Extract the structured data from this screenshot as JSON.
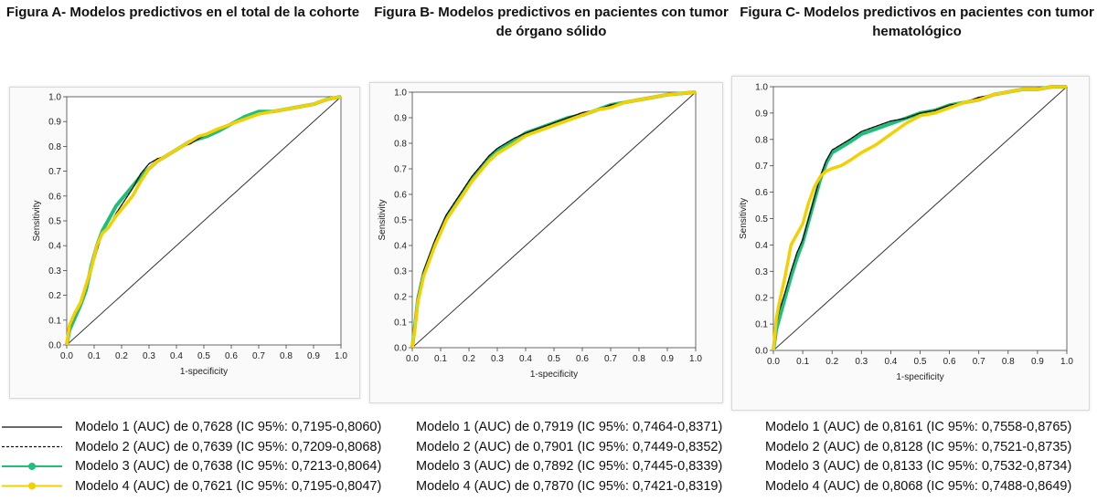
{
  "chart_data": [
    {
      "type": "line",
      "title": "Figura A- Modelos predictivos en el total de la cohorte",
      "xlabel": "1-specificity",
      "ylabel": "Sensitivity",
      "xlim": [
        0,
        1
      ],
      "ylim": [
        0,
        1
      ],
      "ticks": [
        "0.0",
        "0.1",
        "0.2",
        "0.3",
        "0.4",
        "0.5",
        "0.6",
        "0.7",
        "0.8",
        "0.9",
        "1.0"
      ],
      "reference_line": [
        [
          0,
          0
        ],
        [
          1,
          1
        ]
      ],
      "series": [
        {
          "name": "Modelo 1",
          "auc_label": "Modelo 1 (AUC) de 0,7628 (IC 95%: 0,7195-0,8060)",
          "color": "#111111",
          "dash": "solid",
          "x": [
            0,
            0.01,
            0.03,
            0.05,
            0.07,
            0.09,
            0.11,
            0.13,
            0.15,
            0.18,
            0.21,
            0.24,
            0.27,
            0.3,
            0.33,
            0.36,
            0.39,
            0.42,
            0.45,
            0.48,
            0.51,
            0.55,
            0.6,
            0.65,
            0.7,
            0.75,
            0.8,
            0.85,
            0.9,
            0.95,
            1.0
          ],
          "y": [
            0,
            0.07,
            0.12,
            0.17,
            0.23,
            0.3,
            0.38,
            0.45,
            0.47,
            0.53,
            0.58,
            0.63,
            0.69,
            0.73,
            0.75,
            0.76,
            0.78,
            0.8,
            0.81,
            0.83,
            0.85,
            0.87,
            0.89,
            0.91,
            0.93,
            0.94,
            0.95,
            0.96,
            0.97,
            0.99,
            1.0
          ]
        },
        {
          "name": "Modelo 2",
          "auc_label": "Modelo 2 (AUC) de 0,7639 (IC 95%: 0,7209-0,8068)",
          "color": "#111111",
          "dash": "dashed",
          "x": [
            0,
            0.01,
            0.03,
            0.05,
            0.07,
            0.09,
            0.11,
            0.13,
            0.15,
            0.18,
            0.21,
            0.24,
            0.27,
            0.3,
            0.33,
            0.36,
            0.39,
            0.42,
            0.45,
            0.48,
            0.51,
            0.55,
            0.6,
            0.65,
            0.7,
            0.75,
            0.8,
            0.85,
            0.9,
            0.95,
            1.0
          ],
          "y": [
            0,
            0.07,
            0.12,
            0.17,
            0.23,
            0.3,
            0.38,
            0.45,
            0.47,
            0.53,
            0.58,
            0.63,
            0.69,
            0.73,
            0.75,
            0.76,
            0.78,
            0.8,
            0.81,
            0.83,
            0.85,
            0.87,
            0.89,
            0.91,
            0.93,
            0.94,
            0.95,
            0.96,
            0.97,
            0.99,
            1.0
          ]
        },
        {
          "name": "Modelo 3",
          "auc_label": "Modelo 3 (AUC) de 0,7638 (IC 95%: 0,7213-0,8064)",
          "color": "#1fbf7a",
          "dash": "solid",
          "x": [
            0,
            0.01,
            0.03,
            0.05,
            0.07,
            0.09,
            0.11,
            0.13,
            0.15,
            0.18,
            0.21,
            0.24,
            0.27,
            0.3,
            0.33,
            0.36,
            0.39,
            0.42,
            0.45,
            0.48,
            0.51,
            0.55,
            0.6,
            0.65,
            0.7,
            0.75,
            0.8,
            0.85,
            0.9,
            0.95,
            1.0
          ],
          "y": [
            0,
            0.06,
            0.11,
            0.16,
            0.22,
            0.32,
            0.4,
            0.46,
            0.5,
            0.56,
            0.6,
            0.64,
            0.68,
            0.71,
            0.74,
            0.76,
            0.78,
            0.8,
            0.82,
            0.83,
            0.84,
            0.86,
            0.89,
            0.92,
            0.94,
            0.94,
            0.95,
            0.96,
            0.97,
            0.99,
            1.0
          ]
        },
        {
          "name": "Modelo 4",
          "auc_label": "Modelo 4 (AUC) de 0,7621 (IC 95%: 0,7195-0,8047)",
          "color": "#f5d000",
          "dash": "solid",
          "x": [
            0,
            0.01,
            0.03,
            0.05,
            0.07,
            0.09,
            0.11,
            0.13,
            0.15,
            0.18,
            0.21,
            0.24,
            0.27,
            0.3,
            0.33,
            0.36,
            0.39,
            0.42,
            0.45,
            0.48,
            0.51,
            0.55,
            0.6,
            0.65,
            0.7,
            0.75,
            0.8,
            0.85,
            0.9,
            0.95,
            1.0
          ],
          "y": [
            0,
            0.08,
            0.13,
            0.17,
            0.24,
            0.31,
            0.4,
            0.45,
            0.47,
            0.52,
            0.56,
            0.6,
            0.66,
            0.71,
            0.74,
            0.76,
            0.78,
            0.8,
            0.82,
            0.84,
            0.85,
            0.87,
            0.89,
            0.91,
            0.93,
            0.94,
            0.95,
            0.96,
            0.97,
            0.99,
            1.0
          ]
        }
      ]
    },
    {
      "type": "line",
      "title": "Figura B- Modelos predictivos  en pacientes con tumor de órgano sólido",
      "xlabel": "1-specificity",
      "ylabel": "Sensitivity",
      "xlim": [
        0,
        1
      ],
      "ylim": [
        0,
        1
      ],
      "ticks": [
        "0.0",
        "0.1",
        "0.2",
        "0.3",
        "0.4",
        "0.5",
        "0.6",
        "0.7",
        "0.8",
        "0.9",
        "1.0"
      ],
      "reference_line": [
        [
          0,
          0
        ],
        [
          1,
          1
        ]
      ],
      "series": [
        {
          "name": "Modelo 1",
          "auc_label": "Modelo 1 (AUC) de 0,7919 (IC 95%: 0,7464-0,8371)",
          "color": "#111111",
          "dash": "solid",
          "x": [
            0,
            0.01,
            0.02,
            0.04,
            0.06,
            0.08,
            0.1,
            0.12,
            0.15,
            0.18,
            0.21,
            0.24,
            0.27,
            0.3,
            0.33,
            0.36,
            0.4,
            0.45,
            0.5,
            0.55,
            0.6,
            0.65,
            0.7,
            0.75,
            0.8,
            0.85,
            0.9,
            0.95,
            1.0
          ],
          "y": [
            0,
            0.1,
            0.2,
            0.3,
            0.36,
            0.42,
            0.47,
            0.52,
            0.57,
            0.62,
            0.67,
            0.71,
            0.75,
            0.78,
            0.8,
            0.82,
            0.84,
            0.86,
            0.88,
            0.9,
            0.92,
            0.93,
            0.95,
            0.96,
            0.97,
            0.98,
            0.99,
            0.995,
            1.0
          ]
        },
        {
          "name": "Modelo 2",
          "auc_label": "Modelo 2 (AUC) de 0,7901 (IC 95%: 0,7449-0,8352)",
          "color": "#111111",
          "dash": "dashed",
          "x": [
            0,
            0.01,
            0.02,
            0.04,
            0.06,
            0.08,
            0.1,
            0.12,
            0.15,
            0.18,
            0.21,
            0.24,
            0.27,
            0.3,
            0.33,
            0.36,
            0.4,
            0.45,
            0.5,
            0.55,
            0.6,
            0.65,
            0.7,
            0.75,
            0.8,
            0.85,
            0.9,
            0.95,
            1.0
          ],
          "y": [
            0,
            0.1,
            0.2,
            0.3,
            0.36,
            0.42,
            0.47,
            0.52,
            0.57,
            0.62,
            0.67,
            0.71,
            0.75,
            0.78,
            0.8,
            0.82,
            0.84,
            0.86,
            0.88,
            0.9,
            0.92,
            0.93,
            0.95,
            0.96,
            0.97,
            0.98,
            0.99,
            0.995,
            1.0
          ]
        },
        {
          "name": "Modelo 3",
          "auc_label": "Modelo 3 (AUC) de 0,7892 (IC 95%: 0,7445-0,8339)",
          "color": "#1fbf7a",
          "dash": "solid",
          "x": [
            0,
            0.01,
            0.02,
            0.04,
            0.06,
            0.08,
            0.1,
            0.12,
            0.15,
            0.18,
            0.21,
            0.24,
            0.27,
            0.3,
            0.33,
            0.36,
            0.4,
            0.45,
            0.5,
            0.55,
            0.6,
            0.65,
            0.7,
            0.75,
            0.8,
            0.85,
            0.9,
            0.95,
            1.0
          ],
          "y": [
            0,
            0.09,
            0.19,
            0.29,
            0.35,
            0.41,
            0.46,
            0.51,
            0.56,
            0.61,
            0.66,
            0.7,
            0.74,
            0.77,
            0.79,
            0.81,
            0.84,
            0.86,
            0.88,
            0.9,
            0.91,
            0.93,
            0.95,
            0.96,
            0.97,
            0.98,
            0.99,
            0.995,
            1.0
          ]
        },
        {
          "name": "Modelo 4",
          "auc_label": "Modelo 4 (AUC) de 0,7870 (IC 95%: 0,7421-0,8319)",
          "color": "#f5d000",
          "dash": "solid",
          "x": [
            0,
            0.01,
            0.02,
            0.04,
            0.06,
            0.08,
            0.1,
            0.12,
            0.15,
            0.18,
            0.21,
            0.24,
            0.27,
            0.3,
            0.33,
            0.36,
            0.4,
            0.45,
            0.5,
            0.55,
            0.6,
            0.65,
            0.7,
            0.75,
            0.8,
            0.85,
            0.9,
            0.95,
            1.0
          ],
          "y": [
            0,
            0.08,
            0.18,
            0.28,
            0.34,
            0.4,
            0.45,
            0.5,
            0.55,
            0.6,
            0.65,
            0.69,
            0.73,
            0.76,
            0.78,
            0.8,
            0.83,
            0.85,
            0.87,
            0.89,
            0.91,
            0.93,
            0.94,
            0.96,
            0.97,
            0.98,
            0.99,
            0.995,
            1.0
          ]
        }
      ]
    },
    {
      "type": "line",
      "title": "Figura C- Modelos predictivos en pacientes con tumor hematológico",
      "xlabel": "1-specificity",
      "ylabel": "Sensitivity",
      "xlim": [
        0,
        1
      ],
      "ylim": [
        0,
        1
      ],
      "ticks": [
        "0.0",
        "0.1",
        "0.2",
        "0.3",
        "0.4",
        "0.5",
        "0.6",
        "0.7",
        "0.8",
        "0.9",
        "1.0"
      ],
      "reference_line": [
        [
          0,
          0
        ],
        [
          1,
          1
        ]
      ],
      "series": [
        {
          "name": "Modelo 1",
          "auc_label": "Modelo 1 (AUC) de 0,8161 (IC 95%: 0,7558-0,8765)",
          "color": "#111111",
          "dash": "solid",
          "x": [
            0,
            0.01,
            0.02,
            0.04,
            0.06,
            0.08,
            0.1,
            0.12,
            0.14,
            0.16,
            0.18,
            0.2,
            0.23,
            0.26,
            0.3,
            0.35,
            0.4,
            0.45,
            0.5,
            0.55,
            0.6,
            0.65,
            0.7,
            0.75,
            0.8,
            0.85,
            0.9,
            0.95,
            1.0
          ],
          "y": [
            0,
            0.1,
            0.15,
            0.22,
            0.3,
            0.37,
            0.42,
            0.5,
            0.58,
            0.66,
            0.72,
            0.76,
            0.78,
            0.8,
            0.83,
            0.85,
            0.87,
            0.88,
            0.9,
            0.91,
            0.93,
            0.94,
            0.96,
            0.97,
            0.98,
            0.99,
            0.99,
            1.0,
            1.0
          ]
        },
        {
          "name": "Modelo 2",
          "auc_label": "Modelo 2 (AUC) de 0,8128 (IC 95%: 0,7521-0,8735)",
          "color": "#111111",
          "dash": "dashed",
          "x": [
            0,
            0.01,
            0.02,
            0.04,
            0.06,
            0.08,
            0.1,
            0.12,
            0.14,
            0.16,
            0.18,
            0.2,
            0.23,
            0.26,
            0.3,
            0.35,
            0.4,
            0.45,
            0.5,
            0.55,
            0.6,
            0.65,
            0.7,
            0.75,
            0.8,
            0.85,
            0.9,
            0.95,
            1.0
          ],
          "y": [
            0,
            0.1,
            0.15,
            0.22,
            0.3,
            0.37,
            0.42,
            0.5,
            0.58,
            0.66,
            0.72,
            0.76,
            0.78,
            0.8,
            0.83,
            0.85,
            0.87,
            0.88,
            0.9,
            0.91,
            0.93,
            0.94,
            0.96,
            0.97,
            0.98,
            0.99,
            0.99,
            1.0,
            1.0
          ]
        },
        {
          "name": "Modelo 3",
          "auc_label": "Modelo 3 (AUC) de 0,8133 (IC 95%: 0,7532-0,8734)",
          "color": "#1fbf7a",
          "dash": "solid",
          "x": [
            0,
            0.01,
            0.02,
            0.04,
            0.06,
            0.08,
            0.1,
            0.12,
            0.14,
            0.16,
            0.18,
            0.2,
            0.23,
            0.26,
            0.3,
            0.35,
            0.4,
            0.45,
            0.5,
            0.55,
            0.6,
            0.65,
            0.7,
            0.75,
            0.8,
            0.85,
            0.9,
            0.95,
            1.0
          ],
          "y": [
            0,
            0.08,
            0.12,
            0.2,
            0.28,
            0.35,
            0.41,
            0.49,
            0.57,
            0.65,
            0.71,
            0.75,
            0.77,
            0.79,
            0.82,
            0.84,
            0.86,
            0.88,
            0.9,
            0.91,
            0.93,
            0.94,
            0.95,
            0.97,
            0.98,
            0.99,
            0.99,
            1.0,
            1.0
          ]
        },
        {
          "name": "Modelo 4",
          "auc_label": "Modelo 4 (AUC) de 0,8068 (IC 95%: 0,7488-0,8649)",
          "color": "#f5d000",
          "dash": "solid",
          "x": [
            0,
            0.01,
            0.02,
            0.04,
            0.06,
            0.08,
            0.1,
            0.12,
            0.14,
            0.16,
            0.18,
            0.2,
            0.23,
            0.26,
            0.3,
            0.35,
            0.4,
            0.45,
            0.5,
            0.55,
            0.6,
            0.65,
            0.7,
            0.75,
            0.8,
            0.85,
            0.9,
            0.95,
            1.0
          ],
          "y": [
            0,
            0.12,
            0.18,
            0.28,
            0.4,
            0.44,
            0.48,
            0.56,
            0.62,
            0.66,
            0.68,
            0.69,
            0.7,
            0.72,
            0.75,
            0.78,
            0.82,
            0.86,
            0.89,
            0.9,
            0.92,
            0.94,
            0.95,
            0.97,
            0.98,
            0.99,
            0.99,
            1.0,
            1.0
          ]
        }
      ]
    }
  ],
  "legend": {
    "symbols": [
      {
        "name": "Modelo 1",
        "color": "#111111",
        "dash": "solid",
        "marker": false
      },
      {
        "name": "Modelo 2",
        "color": "#111111",
        "dash": "dashed",
        "marker": false
      },
      {
        "name": "Modelo 3",
        "color": "#1fbf7a",
        "dash": "solid",
        "marker": true
      },
      {
        "name": "Modelo 4",
        "color": "#f5d000",
        "dash": "solid",
        "marker": true
      }
    ]
  },
  "colors": {
    "reference": "#333333",
    "axis": "#444444",
    "panel_border": "#d8d8d8"
  }
}
